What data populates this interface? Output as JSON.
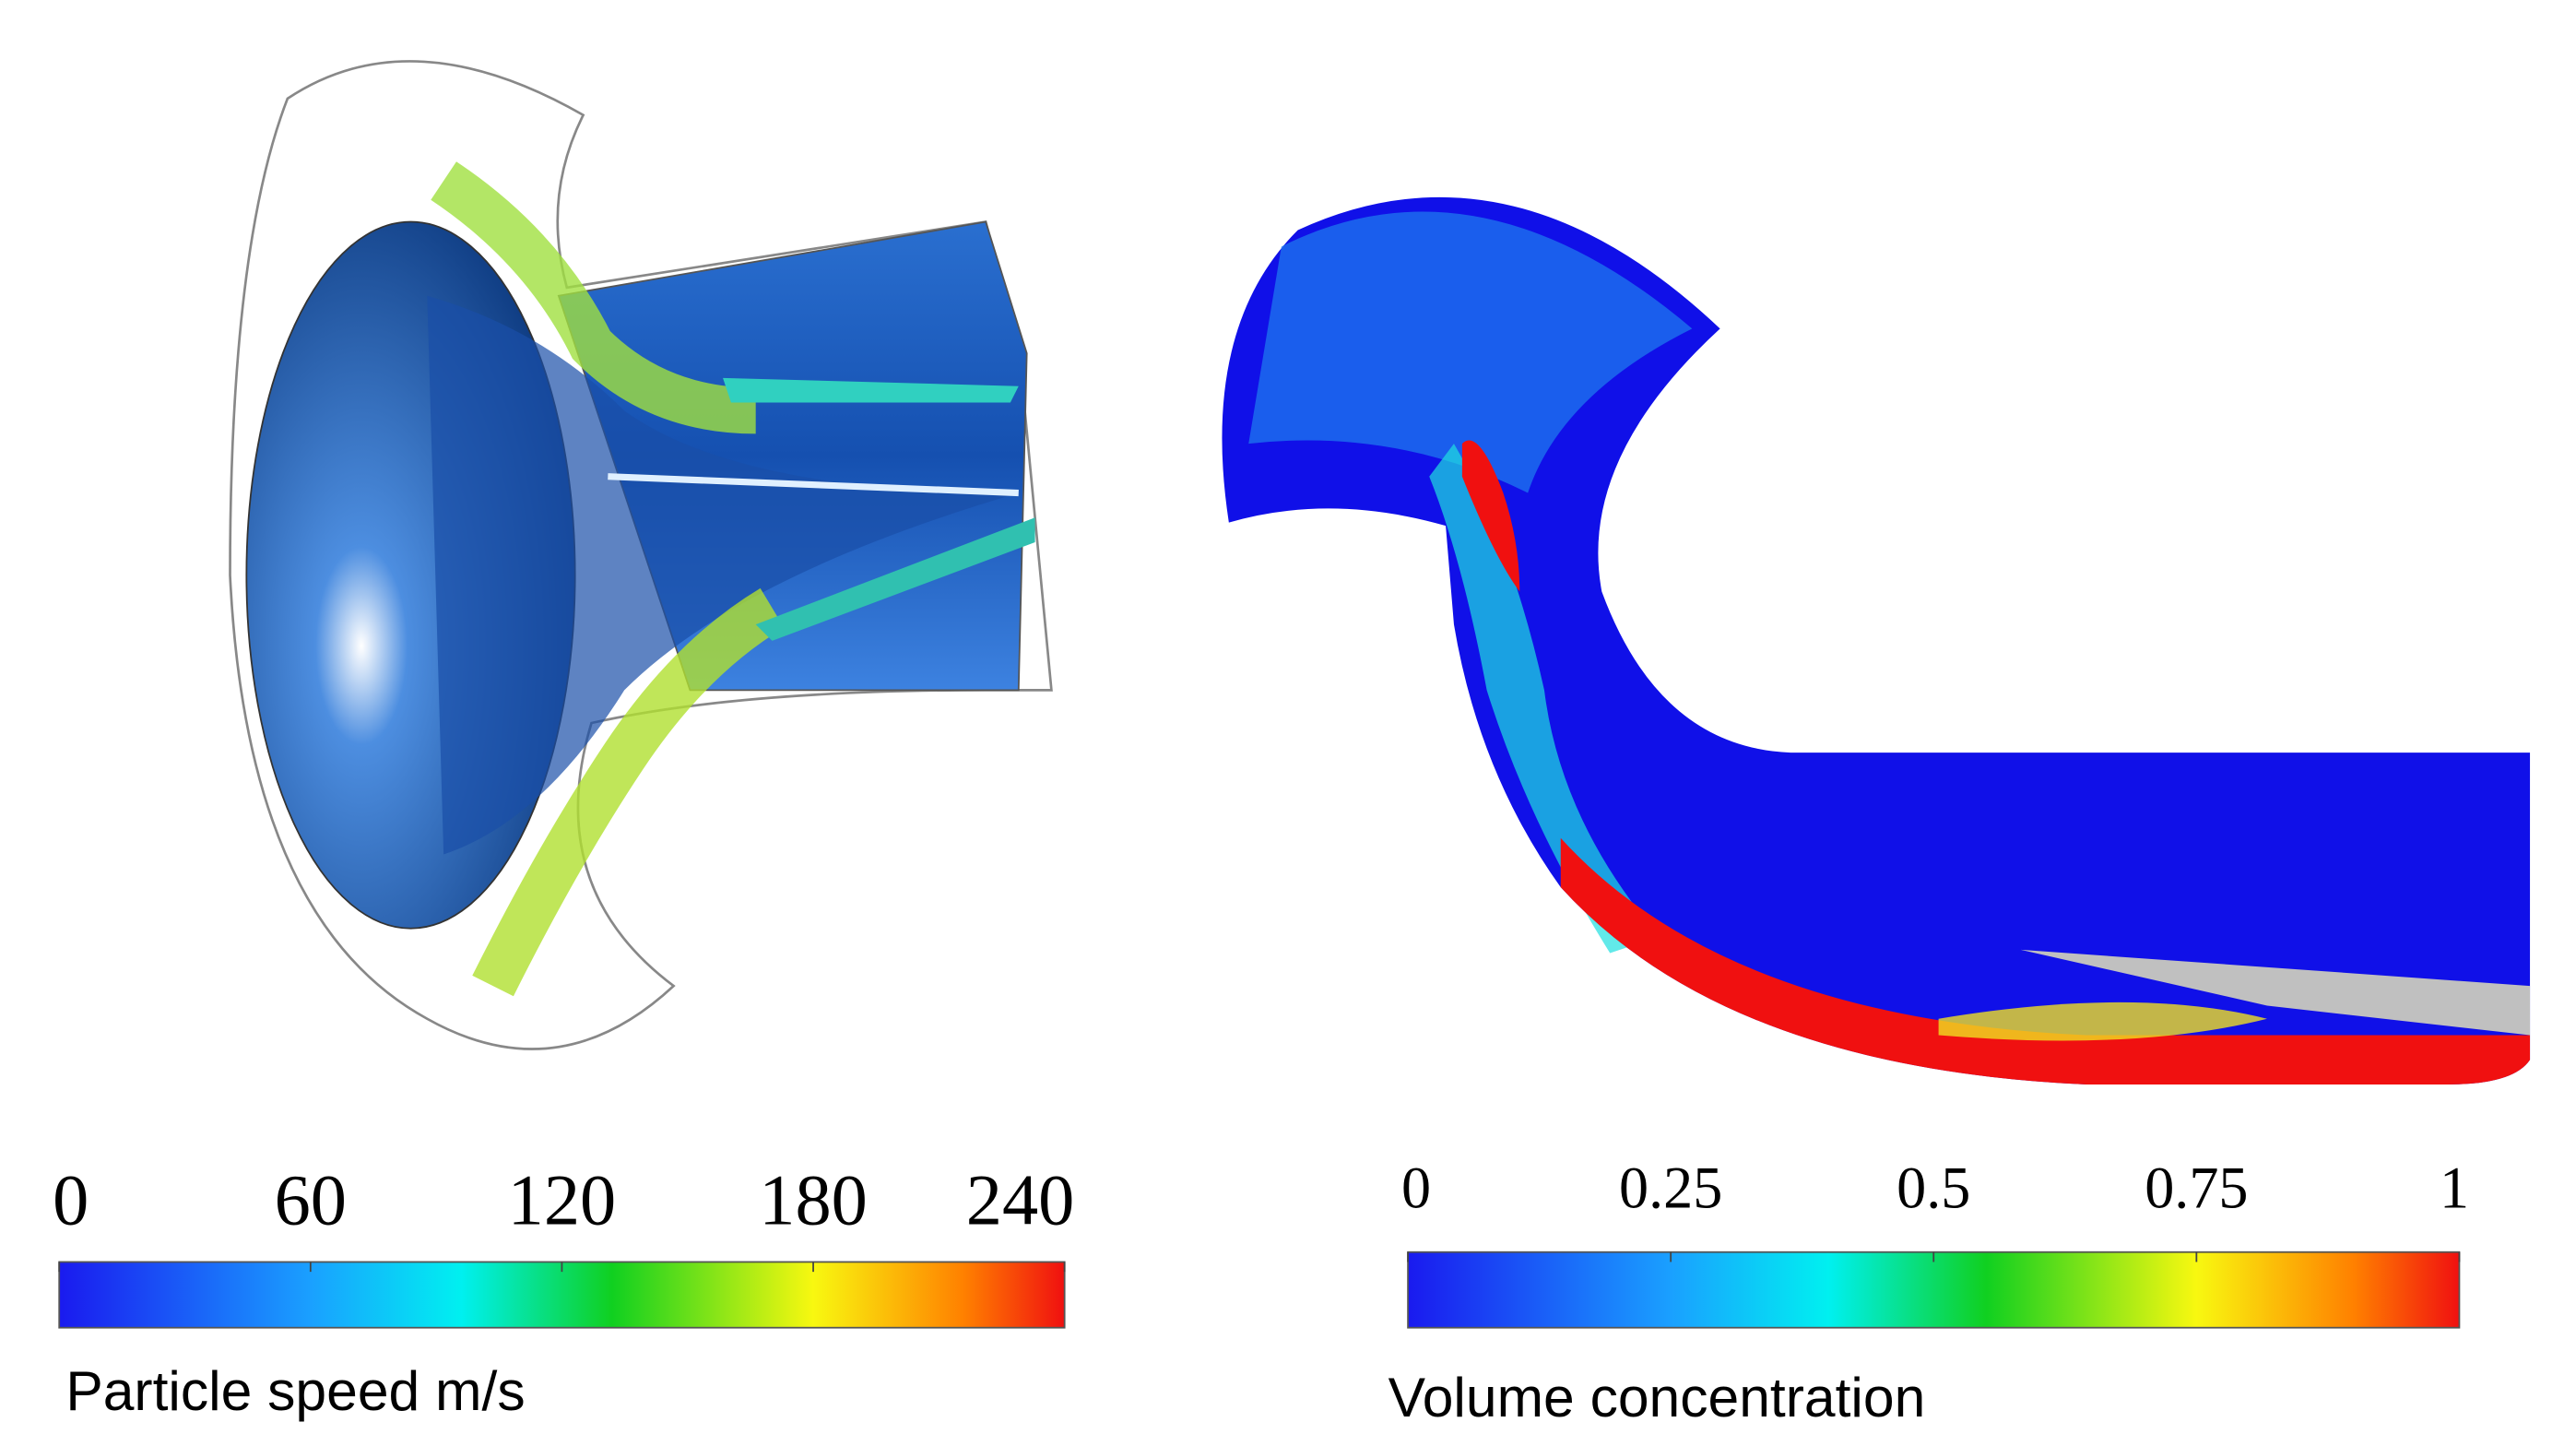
{
  "left": {
    "colorbar": {
      "ticks": [
        0,
        60,
        120,
        180,
        240
      ],
      "label": "Particle speed m/s"
    }
  },
  "right": {
    "colorbar": {
      "ticks": [
        0,
        0.25,
        0.5,
        0.75,
        1
      ],
      "label": "Volume concentration"
    }
  }
}
